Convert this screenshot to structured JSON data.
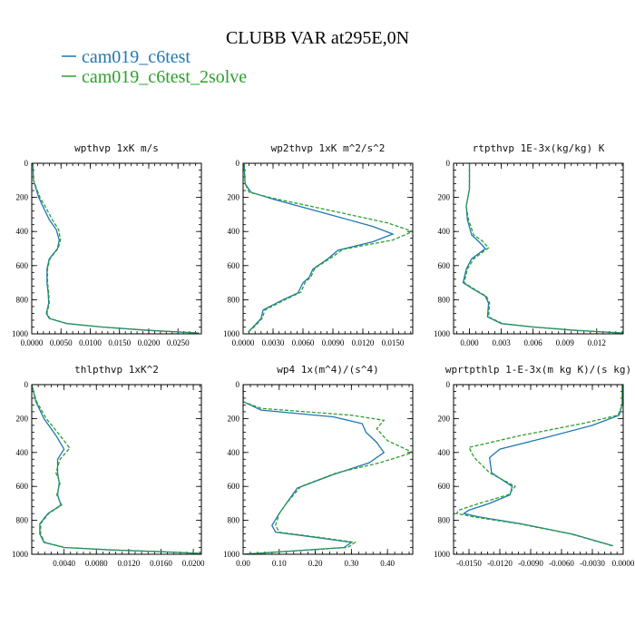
{
  "figure": {
    "title": "CLUBB VAR at295E,0N"
  },
  "legend": [
    {
      "label": "cam019_c6test",
      "color": "#1f77b4",
      "dash": "solid"
    },
    {
      "label": "cam019_c6test_2solve",
      "color": "#2ca02c",
      "dash": "dashed"
    }
  ],
  "chart_data": [
    {
      "type": "line",
      "title": "wpthvp  1xK m/s",
      "xlim": [
        0,
        0.029
      ],
      "ylim": [
        1000,
        0
      ],
      "xticks": [
        0,
        0.005,
        0.01,
        0.015,
        0.02,
        0.025
      ],
      "xtick_labels": [
        "0.0000",
        "0.0050",
        "0.0100",
        "0.0150",
        "0.0200",
        "0.0250"
      ],
      "yticks": [
        0,
        200,
        400,
        600,
        800,
        1000
      ],
      "ytick_labels": [
        "0",
        "200",
        "400",
        "600",
        "800",
        "1000"
      ],
      "series": [
        {
          "x": [
            0.0002,
            0.0003,
            0.0012,
            0.002,
            0.003,
            0.0042,
            0.0047,
            0.0044,
            0.003,
            0.0026,
            0.0026,
            0.0028,
            0.0029,
            0.0025,
            0.003,
            0.006,
            0.012,
            0.02,
            0.0285
          ],
          "y": [
            0,
            100,
            200,
            260,
            330,
            390,
            450,
            500,
            560,
            620,
            700,
            760,
            820,
            880,
            910,
            940,
            960,
            980,
            995
          ]
        },
        {
          "x": [
            0.0002,
            0.0003,
            0.0014,
            0.0024,
            0.0035,
            0.0046,
            0.0049,
            0.0045,
            0.0031,
            0.0027,
            0.0027,
            0.0029,
            0.003,
            0.0026,
            0.0031,
            0.0061,
            0.0121,
            0.0201,
            0.0286
          ],
          "y": [
            0,
            100,
            200,
            260,
            330,
            390,
            450,
            500,
            560,
            620,
            700,
            760,
            820,
            880,
            910,
            940,
            960,
            980,
            995
          ]
        }
      ]
    },
    {
      "type": "line",
      "title": "wp2thvp  1xK m^2/s^2",
      "xlim": [
        0,
        0.017
      ],
      "ylim": [
        1000,
        0
      ],
      "xticks": [
        0,
        0.003,
        0.006,
        0.009,
        0.012,
        0.015
      ],
      "xtick_labels": [
        "0.0000",
        "0.0030",
        "0.0060",
        "0.0090",
        "0.0120",
        "0.0150"
      ],
      "yticks": [
        0,
        200,
        400,
        600,
        800,
        1000
      ],
      "ytick_labels": [
        "0",
        "200",
        "400",
        "600",
        "800",
        "1000"
      ],
      "series": [
        {
          "x": [
            0.0001,
            0.0002,
            0.0008,
            0.003,
            0.008,
            0.013,
            0.015,
            0.013,
            0.0095,
            0.0085,
            0.007,
            0.0066,
            0.006,
            0.0055,
            0.004,
            0.002,
            0.0018,
            0.001,
            0.0005
          ],
          "y": [
            0,
            120,
            170,
            210,
            290,
            370,
            415,
            460,
            510,
            560,
            620,
            670,
            700,
            760,
            800,
            860,
            910,
            960,
            990
          ]
        },
        {
          "x": [
            0.0001,
            0.0002,
            0.0006,
            0.003,
            0.009,
            0.0145,
            0.017,
            0.015,
            0.01,
            0.0088,
            0.0072,
            0.0068,
            0.0062,
            0.0058,
            0.0042,
            0.0022,
            0.0019,
            0.0011,
            0.0005
          ],
          "y": [
            0,
            120,
            170,
            205,
            280,
            350,
            400,
            450,
            505,
            555,
            615,
            665,
            700,
            755,
            800,
            860,
            910,
            960,
            990
          ]
        }
      ]
    },
    {
      "type": "line",
      "title": "rtpthvp  1E-3x(kg/kg) K",
      "xlim": [
        -0.0015,
        0.0145
      ],
      "ylim": [
        1000,
        0
      ],
      "xticks": [
        0,
        0.003,
        0.006,
        0.009,
        0.012
      ],
      "xtick_labels": [
        "0.000",
        "0.003",
        "0.006",
        "0.009",
        "0.012"
      ],
      "yticks": [
        0,
        200,
        400,
        600,
        800,
        1000
      ],
      "ytick_labels": [
        "0",
        "200",
        "400",
        "600",
        "800",
        "1000"
      ],
      "series": [
        {
          "x": [
            0.0,
            0.0,
            -0.0003,
            -0.0002,
            0.0002,
            0.0009,
            0.0015,
            0.0002,
            -0.0003,
            -0.0006,
            0.0004,
            0.0015,
            0.0018,
            0.0017,
            0.003,
            0.006,
            0.01,
            0.0145
          ],
          "y": [
            0,
            150,
            250,
            330,
            420,
            460,
            500,
            560,
            620,
            700,
            740,
            780,
            820,
            900,
            940,
            960,
            980,
            995
          ]
        },
        {
          "x": [
            0.0,
            0.0,
            -0.0003,
            -0.0001,
            0.0004,
            0.0012,
            0.0018,
            0.0004,
            -0.0002,
            -0.0005,
            0.0005,
            0.0016,
            0.0019,
            0.0018,
            0.0031,
            0.0061,
            0.0101,
            0.0145
          ],
          "y": [
            0,
            150,
            250,
            330,
            420,
            455,
            495,
            560,
            620,
            700,
            740,
            780,
            820,
            900,
            940,
            960,
            980,
            995
          ]
        }
      ]
    },
    {
      "type": "line",
      "title": "thlpthvp  1xK^2",
      "xlim": [
        0,
        0.021
      ],
      "ylim": [
        1000,
        0
      ],
      "xticks": [
        0.004,
        0.008,
        0.012,
        0.016,
        0.02
      ],
      "xtick_labels": [
        "0.0040",
        "0.0080",
        "0.0120",
        "0.0160",
        "0.0200"
      ],
      "yticks": [
        0,
        200,
        400,
        600,
        800,
        1000
      ],
      "ytick_labels": [
        "0",
        "200",
        "400",
        "600",
        "800",
        "1000"
      ],
      "series": [
        {
          "x": [
            0.0,
            0.0005,
            0.0015,
            0.003,
            0.004,
            0.0032,
            0.0032,
            0.0034,
            0.0032,
            0.0036,
            0.002,
            0.001,
            0.001,
            0.0015,
            0.004,
            0.01,
            0.016,
            0.021
          ],
          "y": [
            0,
            100,
            200,
            300,
            380,
            440,
            520,
            580,
            650,
            710,
            760,
            820,
            880,
            930,
            960,
            975,
            985,
            995
          ]
        },
        {
          "x": [
            0.0,
            0.0006,
            0.0018,
            0.0035,
            0.0047,
            0.0035,
            0.003,
            0.0035,
            0.0031,
            0.0037,
            0.0021,
            0.0011,
            0.0011,
            0.0016,
            0.0041,
            0.0101,
            0.0161,
            0.021
          ],
          "y": [
            0,
            100,
            200,
            300,
            375,
            440,
            520,
            580,
            650,
            710,
            760,
            820,
            880,
            930,
            960,
            975,
            985,
            995
          ]
        }
      ]
    },
    {
      "type": "line",
      "title": "wp4  1x(m^4)/(s^4)",
      "xlim": [
        0,
        0.47
      ],
      "ylim": [
        1000,
        0
      ],
      "xticks": [
        0,
        0.1,
        0.2,
        0.3,
        0.4
      ],
      "xtick_labels": [
        "0.00",
        "0.10",
        "0.20",
        "0.30",
        "0.40"
      ],
      "yticks": [
        0,
        200,
        400,
        600,
        800,
        1000
      ],
      "ytick_labels": [
        "0",
        "200",
        "400",
        "600",
        "800",
        "1000"
      ],
      "series": [
        {
          "x": [
            0.0,
            0.0,
            0.05,
            0.25,
            0.33,
            0.34,
            0.37,
            0.39,
            0.35,
            0.25,
            0.15,
            0.12,
            0.1,
            0.08,
            0.09,
            0.2,
            0.3,
            0.28,
            0.0
          ],
          "y": [
            0,
            100,
            150,
            190,
            230,
            280,
            340,
            400,
            460,
            530,
            610,
            700,
            760,
            830,
            870,
            900,
            930,
            960,
            1000
          ]
        },
        {
          "x": [
            0.0,
            0.0,
            0.05,
            0.3,
            0.39,
            0.37,
            0.4,
            0.47,
            0.38,
            0.26,
            0.16,
            0.12,
            0.1,
            0.09,
            0.1,
            0.21,
            0.31,
            0.29,
            0.0
          ],
          "y": [
            0,
            100,
            140,
            180,
            210,
            260,
            330,
            400,
            460,
            520,
            600,
            700,
            760,
            830,
            870,
            900,
            930,
            960,
            1000
          ]
        }
      ]
    },
    {
      "type": "line",
      "title": "wprtpthlp  1-E-3x(m kg K)/(s kg)",
      "xlim": [
        -0.0165,
        0.0
      ],
      "ylim": [
        1000,
        0
      ],
      "xticks": [
        -0.015,
        -0.012,
        -0.009,
        -0.006,
        -0.003,
        0
      ],
      "xtick_labels": [
        "-0.0150",
        "-0.0120",
        "-0.0090",
        "-0.0060",
        "-0.0030",
        "0.0000"
      ],
      "yticks": [
        0,
        200,
        400,
        600,
        800,
        1000
      ],
      "ytick_labels": [
        "0",
        "200",
        "400",
        "600",
        "800",
        "1000"
      ],
      "series": [
        {
          "x": [
            -0.0001,
            -0.0001,
            -0.0004,
            -0.003,
            -0.008,
            -0.012,
            -0.013,
            -0.0128,
            -0.0108,
            -0.011,
            -0.013,
            -0.015,
            -0.0155,
            -0.014,
            -0.01,
            -0.005,
            -0.001
          ],
          "y": [
            0,
            120,
            180,
            240,
            320,
            380,
            430,
            520,
            600,
            650,
            700,
            740,
            760,
            780,
            820,
            880,
            950
          ]
        },
        {
          "x": [
            -0.0001,
            -0.0001,
            -0.0005,
            -0.004,
            -0.01,
            -0.015,
            -0.0145,
            -0.013,
            -0.0105,
            -0.0112,
            -0.014,
            -0.016,
            -0.0162,
            -0.0145,
            -0.0102,
            -0.0051,
            -0.0011
          ],
          "y": [
            0,
            120,
            180,
            230,
            300,
            370,
            430,
            520,
            600,
            650,
            700,
            740,
            760,
            780,
            820,
            880,
            950
          ]
        }
      ]
    }
  ]
}
